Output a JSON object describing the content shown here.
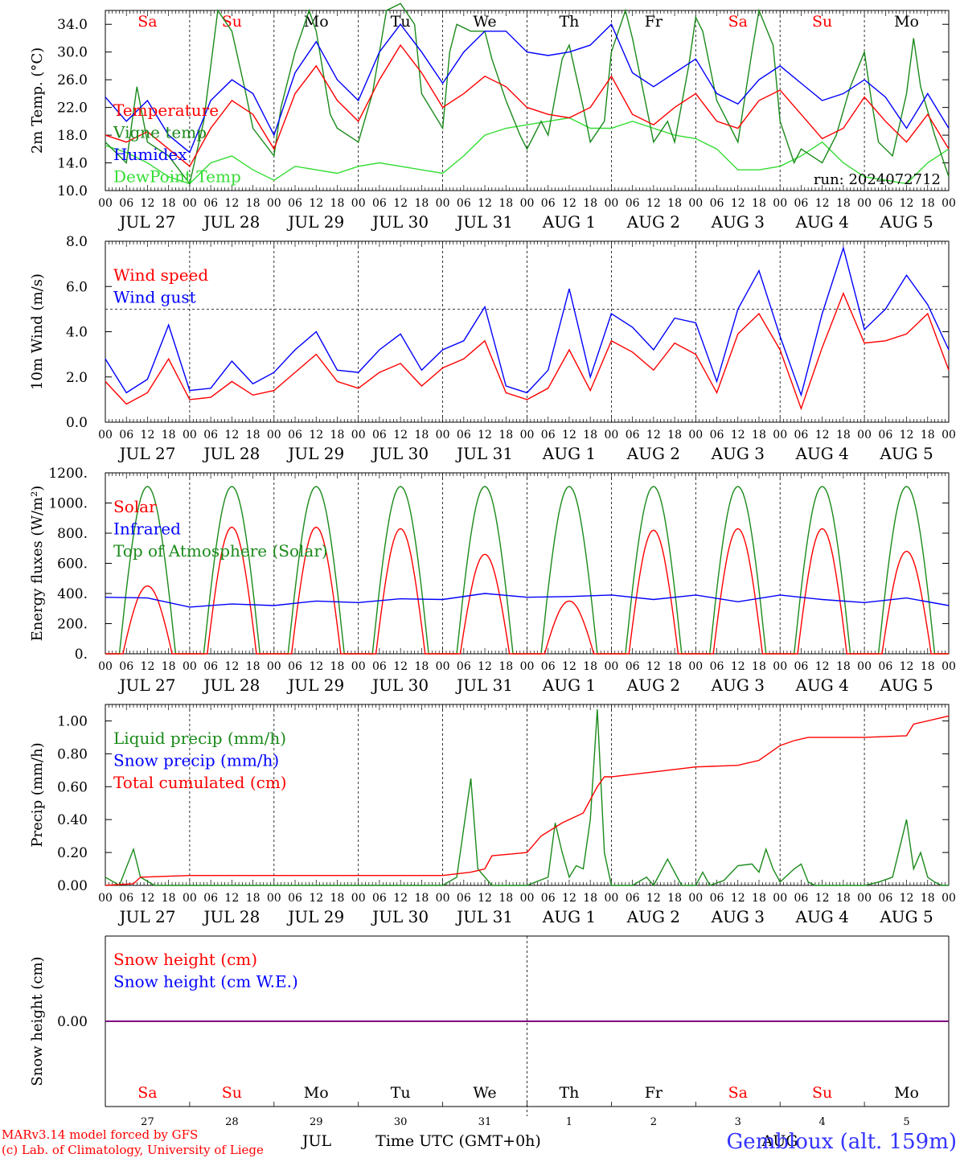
{
  "colors": {
    "red": "#ff0000",
    "green": "#1a8a1a",
    "blue": "#0000ff",
    "lightgreen": "#33dd33",
    "purple": "#7f007f",
    "day_weekend": "#ff0000",
    "day_weekday": "#000000",
    "station": "#3333ff"
  },
  "x_axis": {
    "hour_labels": [
      "00",
      "06",
      "12",
      "18"
    ],
    "end_hour_label": "00",
    "dates": [
      "JUL 27",
      "JUL 28",
      "JUL 29",
      "JUL 30",
      "JUL 31",
      "AUG  1",
      "AUG  2",
      "AUG  3",
      "AUG  4",
      "AUG  5"
    ],
    "weekdays": [
      "Sa",
      "Su",
      "Mo",
      "Tu",
      "We",
      "Th",
      "Fr",
      "Sa",
      "Su",
      "Mo"
    ],
    "weekend_flags": [
      true,
      true,
      false,
      false,
      false,
      false,
      false,
      true,
      true,
      false
    ],
    "day_numbers": [
      "27",
      "28",
      "29",
      "30",
      "31",
      "1",
      "2",
      "3",
      "4",
      "5"
    ],
    "month_left": "JUL",
    "month_right": "AUG",
    "title": "Time UTC (GMT+0h)"
  },
  "footer": {
    "model_line": "MARv3.14 model forced by GFS",
    "copyright_line": "(c) Lab. of Climatology, University of Liege",
    "station": "Gembloux (alt. 159m)"
  },
  "chart_data": [
    {
      "type": "line",
      "ylabel": "2m Temp. (°C)",
      "ylim": [
        10,
        36
      ],
      "yticks": [
        "10.0",
        "14.0",
        "18.0",
        "22.0",
        "26.0",
        "30.0",
        "34.0"
      ],
      "run_label": "run: 2024072712",
      "x_unit": "hours since 00 UTC JUL 27",
      "series": [
        {
          "name": "Temperature",
          "color": "red",
          "x": [
            0,
            6,
            12,
            18,
            24,
            30,
            36,
            42,
            48,
            54,
            60,
            66,
            72,
            78,
            84,
            90,
            96,
            102,
            108,
            114,
            120,
            126,
            132,
            138,
            144,
            150,
            156,
            162,
            168,
            174,
            180,
            186,
            192,
            198,
            204,
            210,
            216,
            222,
            228,
            234,
            240
          ],
          "values": [
            18,
            17,
            18.5,
            16,
            13.5,
            19,
            23,
            21,
            16,
            24,
            28,
            23,
            20,
            26,
            31,
            27,
            22,
            24,
            26.5,
            25,
            22,
            21,
            20.5,
            22,
            26.5,
            21,
            19.5,
            22,
            24,
            20,
            19,
            23,
            24.5,
            21,
            17.5,
            19,
            23.5,
            20,
            17,
            21,
            16
          ]
        },
        {
          "name": "Vigne temp",
          "color": "green",
          "x": [
            0,
            6,
            9,
            12,
            18,
            24,
            28,
            32,
            36,
            40,
            42,
            48,
            50,
            54,
            58,
            60,
            64,
            66,
            72,
            76,
            80,
            84,
            88,
            90,
            96,
            98,
            100,
            104,
            108,
            110,
            114,
            118,
            120,
            124,
            126,
            130,
            132,
            136,
            138,
            142,
            144,
            148,
            150,
            156,
            160,
            162,
            166,
            168,
            170,
            174,
            180,
            184,
            186,
            190,
            192,
            196,
            198,
            204,
            208,
            212,
            216,
            218,
            220,
            224,
            228,
            230,
            232,
            236,
            240
          ],
          "values": [
            17,
            14,
            25,
            17,
            15,
            11,
            20,
            36,
            33,
            24,
            19,
            15,
            22,
            30,
            36,
            33,
            21,
            19,
            17,
            24,
            36,
            37,
            34,
            24,
            19,
            30,
            34,
            33,
            33,
            29,
            23,
            18,
            16,
            20,
            18,
            29,
            31,
            22,
            17,
            20,
            30,
            36,
            32,
            17,
            20,
            17,
            28,
            35,
            33,
            23,
            17,
            30,
            36,
            31,
            20,
            14,
            16,
            14,
            18,
            25,
            30,
            23,
            17,
            15,
            24,
            32,
            25,
            18,
            12
          ]
        },
        {
          "name": "Humidex",
          "color": "blue",
          "x": [
            0,
            6,
            12,
            18,
            24,
            30,
            36,
            42,
            48,
            54,
            60,
            66,
            72,
            78,
            84,
            90,
            96,
            102,
            108,
            114,
            120,
            126,
            132,
            138,
            144,
            150,
            156,
            162,
            168,
            174,
            180,
            186,
            192,
            198,
            204,
            210,
            216,
            222,
            228,
            234,
            240
          ],
          "values": [
            23.5,
            20,
            23,
            18,
            15.5,
            23,
            26,
            24,
            18,
            27,
            31.5,
            26,
            23,
            30,
            34,
            30,
            25.5,
            30,
            33,
            33,
            30,
            29.5,
            30,
            31,
            34,
            27,
            25,
            27,
            29,
            24,
            22.5,
            26,
            28,
            25.5,
            23,
            24,
            26,
            23.5,
            19,
            24,
            19
          ]
        },
        {
          "name": "DewPoint Temp",
          "color": "lightgreen",
          "x": [
            0,
            6,
            12,
            18,
            24,
            30,
            36,
            42,
            48,
            54,
            60,
            66,
            72,
            78,
            84,
            90,
            96,
            102,
            108,
            114,
            120,
            126,
            132,
            138,
            144,
            150,
            156,
            162,
            168,
            174,
            180,
            186,
            192,
            198,
            204,
            210,
            216,
            222,
            228,
            234,
            240
          ],
          "values": [
            16.5,
            15.5,
            14,
            12,
            11,
            14,
            15,
            13,
            11.5,
            13.5,
            13,
            12.5,
            13.5,
            14,
            13.5,
            13,
            12.5,
            15,
            18,
            19,
            19.5,
            20,
            20.5,
            19,
            19,
            20,
            19,
            18,
            17.5,
            16,
            13,
            13,
            13.5,
            15,
            17,
            14,
            12,
            11.5,
            11,
            14,
            16
          ]
        }
      ]
    },
    {
      "type": "line",
      "ylabel": "10m Wind (m/s)",
      "ylim": [
        0,
        8
      ],
      "yticks": [
        "0.0",
        "2.0",
        "4.0",
        "6.0",
        "8.0"
      ],
      "reference_line": 5.0,
      "x_unit": "hours since 00 UTC JUL 27",
      "series": [
        {
          "name": "Wind speed",
          "color": "red",
          "x": [
            0,
            6,
            12,
            18,
            24,
            30,
            36,
            42,
            48,
            54,
            60,
            66,
            72,
            78,
            84,
            90,
            96,
            102,
            108,
            114,
            120,
            126,
            132,
            138,
            144,
            150,
            156,
            162,
            168,
            174,
            180,
            186,
            192,
            198,
            204,
            210,
            216,
            222,
            228,
            234,
            240
          ],
          "values": [
            1.8,
            0.8,
            1.3,
            2.8,
            1.0,
            1.1,
            1.8,
            1.2,
            1.4,
            2.2,
            3.0,
            1.8,
            1.5,
            2.2,
            2.6,
            1.6,
            2.4,
            2.8,
            3.6,
            1.3,
            1.0,
            1.5,
            3.2,
            1.4,
            3.6,
            3.1,
            2.3,
            3.5,
            3.0,
            1.3,
            3.9,
            4.8,
            3.2,
            0.6,
            3.3,
            5.7,
            3.5,
            3.6,
            3.9,
            4.8,
            2.3
          ]
        },
        {
          "name": "Wind gust",
          "color": "blue",
          "x": [
            0,
            6,
            12,
            18,
            24,
            30,
            36,
            42,
            48,
            54,
            60,
            66,
            72,
            78,
            84,
            90,
            96,
            102,
            108,
            114,
            120,
            126,
            132,
            138,
            144,
            150,
            156,
            162,
            168,
            174,
            180,
            186,
            192,
            198,
            204,
            210,
            216,
            222,
            228,
            234,
            240
          ],
          "values": [
            2.8,
            1.3,
            1.9,
            4.3,
            1.4,
            1.5,
            2.7,
            1.7,
            2.2,
            3.2,
            4.0,
            2.3,
            2.2,
            3.2,
            3.9,
            2.3,
            3.2,
            3.6,
            5.1,
            1.6,
            1.3,
            2.3,
            5.9,
            2.0,
            4.8,
            4.2,
            3.2,
            4.6,
            4.4,
            1.8,
            5.0,
            6.7,
            3.8,
            1.2,
            4.8,
            7.7,
            4.1,
            5.0,
            6.5,
            5.2,
            3.2
          ]
        }
      ]
    },
    {
      "type": "line",
      "ylabel": "Energy fluxes (W/m²)",
      "ylim": [
        0,
        1200
      ],
      "yticks": [
        "0.",
        "200.",
        "400.",
        "600.",
        "800.",
        "1000.",
        "1200."
      ],
      "x_unit": "hours since 00 UTC JUL 27",
      "series": [
        {
          "name": "Solar",
          "color": "red",
          "day_peaks": [
            450,
            840,
            840,
            830,
            660,
            350,
            820,
            830,
            830,
            680
          ]
        },
        {
          "name": "Infrared",
          "color": "blue",
          "x": [
            0,
            12,
            24,
            36,
            48,
            60,
            72,
            84,
            96,
            108,
            120,
            132,
            144,
            156,
            168,
            180,
            192,
            204,
            216,
            228,
            240
          ],
          "values": [
            375,
            370,
            310,
            330,
            320,
            350,
            340,
            365,
            360,
            400,
            375,
            380,
            390,
            360,
            390,
            345,
            390,
            360,
            340,
            370,
            320
          ]
        },
        {
          "name": "Top of Atmosphere (Solar)",
          "color": "green",
          "day_peak": 1110,
          "daylight_hours": [
            4,
            20
          ]
        }
      ]
    },
    {
      "type": "line",
      "ylabel": "Precip (mm/h)",
      "ylim": [
        0,
        1.1
      ],
      "yticks": [
        "0.00",
        "0.20",
        "0.40",
        "0.60",
        "0.80",
        "1.00"
      ],
      "x_unit": "hours since 00 UTC JUL 27",
      "series": [
        {
          "name": "Liquid precip (mm/h)",
          "color": "green",
          "x": [
            0,
            4,
            8,
            10,
            14,
            18,
            24,
            48,
            96,
            100,
            104,
            106,
            110,
            112,
            114,
            120,
            126,
            128,
            130,
            132,
            134,
            136,
            138,
            140,
            142,
            144,
            150,
            154,
            156,
            160,
            164,
            168,
            170,
            172,
            176,
            180,
            184,
            186,
            188,
            190,
            192,
            196,
            198,
            200,
            202,
            204,
            208,
            212,
            216,
            220,
            224,
            228,
            230,
            232,
            234,
            236,
            238,
            240
          ],
          "values": [
            0.05,
            0,
            0.22,
            0.05,
            0,
            0,
            0,
            0,
            0,
            0.05,
            0.65,
            0.1,
            0,
            0,
            0,
            0,
            0.05,
            0.38,
            0.2,
            0.05,
            0.12,
            0.1,
            0.4,
            1.07,
            0.2,
            0,
            0,
            0.05,
            0,
            0.16,
            0,
            0,
            0.08,
            0,
            0.03,
            0.12,
            0.13,
            0.08,
            0.22,
            0.1,
            0.02,
            0.1,
            0.13,
            0.02,
            0,
            0,
            0,
            0,
            0,
            0.02,
            0.05,
            0.4,
            0.1,
            0.2,
            0.05,
            0.02,
            0,
            0
          ]
        },
        {
          "name": "Snow precip (mm/h)",
          "color": "blue"
        },
        {
          "name": "Total cumulated (cm)",
          "color": "red",
          "x": [
            0,
            8,
            10,
            24,
            48,
            96,
            104,
            108,
            110,
            120,
            124,
            130,
            136,
            140,
            142,
            144,
            156,
            168,
            180,
            186,
            192,
            196,
            200,
            204,
            216,
            228,
            230,
            240
          ],
          "values": [
            0,
            0.01,
            0.05,
            0.06,
            0.06,
            0.06,
            0.08,
            0.1,
            0.18,
            0.2,
            0.3,
            0.38,
            0.44,
            0.6,
            0.66,
            0.66,
            0.69,
            0.72,
            0.73,
            0.76,
            0.85,
            0.88,
            0.9,
            0.9,
            0.9,
            0.91,
            0.98,
            1.03
          ]
        }
      ]
    },
    {
      "type": "line",
      "ylabel": "Snow height (cm)",
      "yticks": [
        "0.00"
      ],
      "x_unit": "hours since 00 UTC JUL 27",
      "series": [
        {
          "name": "Snow height (cm)",
          "color": "red",
          "x": [
            0,
            240
          ],
          "values": [
            0,
            0
          ]
        },
        {
          "name": "Snow height (cm W.E.)",
          "color": "blue",
          "x": [
            0,
            240
          ],
          "values": [
            0,
            0
          ]
        }
      ]
    }
  ]
}
